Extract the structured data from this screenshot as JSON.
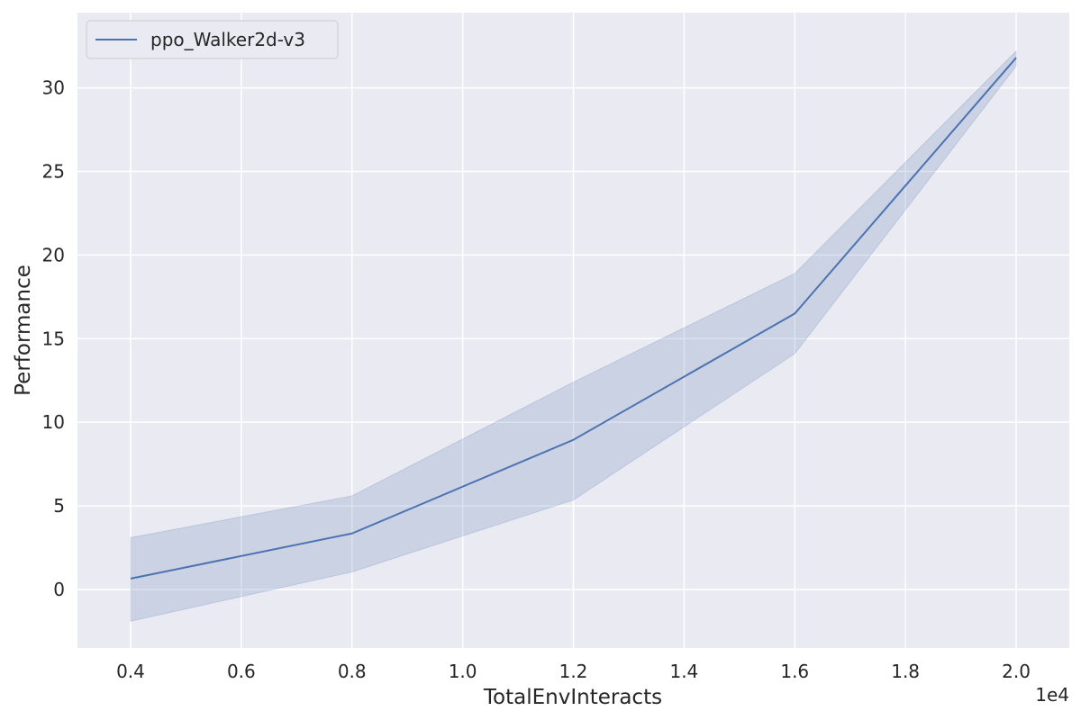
{
  "chart_data": {
    "type": "line",
    "x": [
      4000,
      8000,
      12000,
      16000,
      20000
    ],
    "series": [
      {
        "name": "ppo_Walker2d-v3",
        "values": [
          0.65,
          3.35,
          8.95,
          16.5,
          31.8
        ],
        "lower": [
          -1.9,
          1.05,
          5.35,
          14.1,
          31.3
        ],
        "upper": [
          3.1,
          5.6,
          12.4,
          18.9,
          32.2
        ],
        "color": "#4c72b0"
      }
    ],
    "xlabel": "TotalEnvInteracts",
    "ylabel": "Performance",
    "x_offset_label": "1e4",
    "x_ticks": [
      4000,
      6000,
      8000,
      10000,
      12000,
      14000,
      16000,
      18000,
      20000
    ],
    "x_tick_labels": [
      "0.4",
      "0.6",
      "0.8",
      "1.0",
      "1.2",
      "1.4",
      "1.6",
      "1.8",
      "2.0"
    ],
    "y_ticks": [
      0,
      5,
      10,
      15,
      20,
      25,
      30
    ],
    "y_tick_labels": [
      "0",
      "5",
      "10",
      "15",
      "20",
      "25",
      "30"
    ],
    "xlim": [
      3040,
      20960
    ],
    "ylim": [
      -3.5,
      34.5
    ],
    "grid": true,
    "legend_position": "top-left",
    "background_color": "#eaeaf2",
    "grid_color": "#ffffff"
  }
}
